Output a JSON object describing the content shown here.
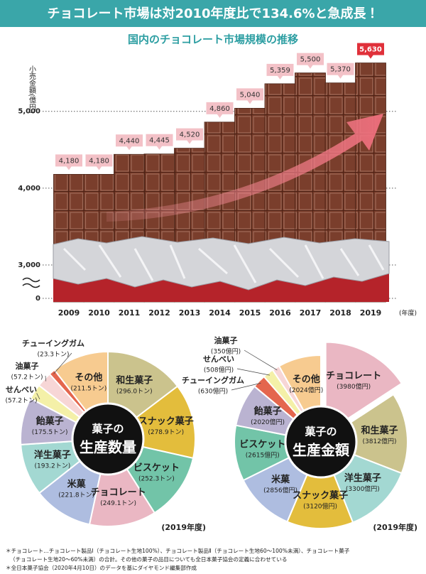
{
  "header": {
    "title": "チョコレート市場は対2010年度比で134.6%と急成長！"
  },
  "chart_data": [
    {
      "type": "bar",
      "title": "国内のチョコレート市場規模の推移",
      "y_label": "小売金額(億円)",
      "x_unit": "(年度)",
      "categories": [
        "2009",
        "2010",
        "2011",
        "2012",
        "2013",
        "2014",
        "2015",
        "2016",
        "2017",
        "2018",
        "2019"
      ],
      "values": [
        4180,
        4180,
        4440,
        4445,
        4520,
        4860,
        5040,
        5359,
        5500,
        5370,
        5630
      ],
      "value_labels": [
        "4,180",
        "4,180",
        "4,440",
        "4,445",
        "4,520",
        "4,860",
        "5,040",
        "5,359",
        "5,500",
        "5,370",
        "5,630"
      ],
      "color": "#7a3e2c",
      "label_color": "#f3c1c7",
      "highlight_color": "#e0303a",
      "highlight_index": 10,
      "ylim": [
        0,
        5700
      ],
      "axis_break": [
        0,
        3000
      ],
      "yticks": [
        0,
        {
          "value": 3000,
          "label": "3,000"
        },
        {
          "value": 4000,
          "label": "4,000"
        },
        {
          "value": 5000,
          "label": "5,000"
        }
      ],
      "grid": true
    },
    {
      "type": "pie",
      "center_label": [
        "菓子の",
        "生産数量"
      ],
      "note": "(2019年度)",
      "categories": [
        "和生菓子",
        "スナック菓子",
        "ビスケット",
        "チョコレート",
        "米菓",
        "洋生菓子",
        "飴菓子",
        "せんべい",
        "油菓子",
        "チューイングガム",
        "その他"
      ],
      "values": [
        296.0,
        278.9,
        252.3,
        249.1,
        221.8,
        193.2,
        175.5,
        57.2,
        57.2,
        23.3,
        211.5
      ],
      "value_labels": [
        "(296.0トン)",
        "(278.9トン)",
        "(252.3トン)",
        "(249.1トン)",
        "(221.8トン)",
        "(193.2トン)",
        "(175.5トン)",
        "(57.2トン)",
        "(57.2トン)",
        "(23.3トン)",
        "(211.5トン)"
      ],
      "colors": [
        "#cbc38d",
        "#e3bd3c",
        "#72c4a8",
        "#eab7c3",
        "#aebde0",
        "#a3d8d2",
        "#bab3d1",
        "#f4f0a8",
        "#f7d6d6",
        "#e4664e",
        "#f7cb90"
      ]
    },
    {
      "type": "pie",
      "center_label": [
        "菓子の",
        "生産金額"
      ],
      "note": "(2019年度)",
      "explode_index": 0,
      "categories": [
        "チョコレート",
        "和生菓子",
        "洋生菓子",
        "スナック菓子",
        "米菓",
        "ビスケット",
        "飴菓子",
        "チューイングガム",
        "せんべい",
        "油菓子",
        "その他"
      ],
      "values": [
        3980,
        3812,
        3300,
        3120,
        2856,
        2615,
        2020,
        630,
        508,
        350,
        2024
      ],
      "value_labels": [
        "(3980億円)",
        "(3812億円)",
        "(3300億円)",
        "(3120億円)",
        "(2856億円)",
        "(2615億円)",
        "(2020億円)",
        "(630億円)",
        "(508億円)",
        "(350億円)",
        "(2024億円)"
      ],
      "colors": [
        "#eab7c3",
        "#cbc38d",
        "#a3d8d2",
        "#e3bd3c",
        "#aebde0",
        "#72c4a8",
        "#bab3d1",
        "#e4664e",
        "#f4f0a8",
        "#f7d6d6",
        "#f7cb90"
      ]
    }
  ],
  "footnotes": [
    "＊チョコレート…チョコレート製品Ⅰ（チョコレート生地100%）、チョコレート製品Ⅱ（チョコレート生地60～100%未満）、チョコレート菓子",
    "（チョコレート生地20～60%未満）の合計。その他の菓子の品目についても全日本菓子協会の定義に合わせている",
    "＊全日本菓子協会（2020年4月10日）のデータを基にダイヤモンド編集部作成"
  ]
}
